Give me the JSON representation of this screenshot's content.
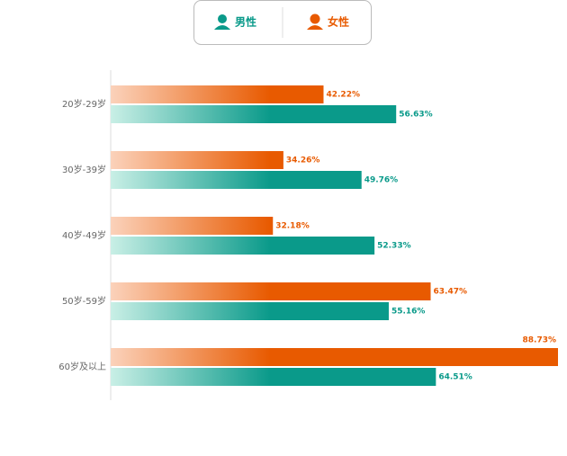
{
  "chart_data": {
    "type": "bar",
    "orientation": "horizontal",
    "categories": [
      "20岁-29岁",
      "30岁-39岁",
      "40岁-49岁",
      "50岁-59岁",
      "60岁及以上"
    ],
    "series": [
      {
        "name": "男性",
        "color": "#0a9a8a",
        "values": [
          56.63,
          49.76,
          52.33,
          55.16,
          64.51
        ],
        "value_labels": [
          "56.63%",
          "49.76%",
          "52.33%",
          "55.16%",
          "64.51%"
        ]
      },
      {
        "name": "女性",
        "color": "#e85a00",
        "values": [
          42.22,
          34.26,
          32.18,
          63.47,
          88.73
        ],
        "value_labels": [
          "42.22%",
          "34.26%",
          "32.18%",
          "63.47%",
          "88.73%"
        ]
      }
    ]
  }
}
